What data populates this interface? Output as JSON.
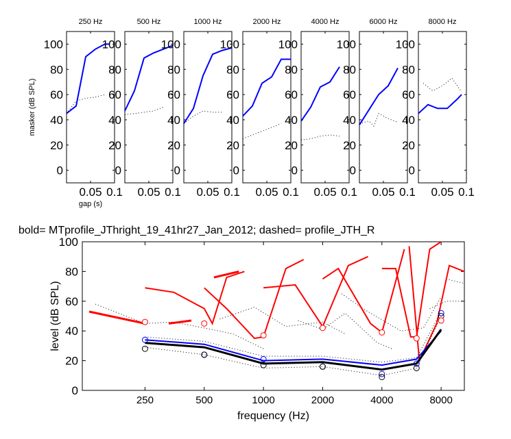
{
  "chart_data": [
    {
      "type": "line",
      "title": "250 Hz",
      "ylabel": "masker (dB SPL)",
      "xlabel": "gap (s)",
      "xlim": [
        0,
        0.1
      ],
      "ylim": [
        -10,
        110
      ],
      "xticks": [
        0.05,
        0.1
      ],
      "yticks": [
        0,
        20,
        40,
        60,
        80,
        100
      ],
      "series": [
        {
          "style": "solid-blue",
          "x": [
            0.0,
            0.02,
            0.04,
            0.06,
            0.08,
            0.09
          ],
          "y": [
            45,
            51,
            90,
            96,
            100,
            100
          ]
        },
        {
          "style": "dotted-black",
          "x": [
            0.0,
            0.02,
            0.04,
            0.06,
            0.08
          ],
          "y": [
            45,
            55,
            57,
            58,
            60
          ]
        }
      ]
    },
    {
      "type": "line",
      "title": "500 Hz",
      "xlim": [
        0,
        0.1
      ],
      "ylim": [
        -10,
        110
      ],
      "xticks": [
        0.05,
        0.1
      ],
      "yticks": [
        0,
        20,
        40,
        60,
        80,
        100
      ],
      "series": [
        {
          "style": "solid-blue",
          "x": [
            0.0,
            0.02,
            0.04,
            0.06,
            0.08,
            0.1
          ],
          "y": [
            47,
            63,
            89,
            93,
            96,
            99
          ]
        },
        {
          "style": "dotted-black",
          "x": [
            0.0,
            0.02,
            0.04,
            0.06,
            0.08
          ],
          "y": [
            44,
            45,
            46,
            47,
            50
          ]
        }
      ]
    },
    {
      "type": "line",
      "title": "1000 Hz",
      "xlim": [
        0,
        0.1
      ],
      "ylim": [
        -10,
        110
      ],
      "xticks": [
        0.05,
        0.1
      ],
      "yticks": [
        0,
        20,
        40,
        60,
        80,
        100
      ],
      "series": [
        {
          "style": "solid-blue",
          "x": [
            0.0,
            0.02,
            0.04,
            0.06,
            0.08,
            0.1
          ],
          "y": [
            37,
            49,
            75,
            92,
            95,
            97
          ]
        },
        {
          "style": "dotted-black",
          "x": [
            0.0,
            0.02,
            0.04,
            0.06,
            0.08
          ],
          "y": [
            37,
            43,
            47,
            46,
            46
          ]
        }
      ]
    },
    {
      "type": "line",
      "title": "2000 Hz",
      "xlim": [
        0,
        0.1
      ],
      "ylim": [
        -10,
        110
      ],
      "xticks": [
        0.05,
        0.1
      ],
      "yticks": [
        0,
        20,
        40,
        60,
        80,
        100
      ],
      "series": [
        {
          "style": "solid-blue",
          "x": [
            0.0,
            0.02,
            0.04,
            0.06,
            0.08,
            0.1
          ],
          "y": [
            43,
            51,
            69,
            74,
            88,
            88
          ]
        },
        {
          "style": "dotted-black",
          "x": [
            0.0,
            0.02,
            0.04,
            0.06,
            0.08
          ],
          "y": [
            25,
            28,
            31,
            34,
            37
          ]
        }
      ]
    },
    {
      "type": "line",
      "title": "4000 Hz",
      "xlim": [
        0,
        0.1
      ],
      "ylim": [
        -10,
        110
      ],
      "xticks": [
        0.05,
        0.1
      ],
      "yticks": [
        0,
        20,
        40,
        60,
        80,
        100
      ],
      "series": [
        {
          "style": "solid-blue",
          "x": [
            0.0,
            0.02,
            0.04,
            0.06,
            0.08
          ],
          "y": [
            39,
            50,
            66,
            70,
            82
          ]
        },
        {
          "style": "dotted-black",
          "x": [
            0.0,
            0.02,
            0.04,
            0.06,
            0.08
          ],
          "y": [
            24,
            25,
            27,
            28,
            27
          ]
        }
      ]
    },
    {
      "type": "line",
      "title": "6000 Hz",
      "xlim": [
        0,
        0.1
      ],
      "ylim": [
        -10,
        110
      ],
      "xticks": [
        0.05,
        0.1
      ],
      "yticks": [
        0,
        20,
        40,
        60,
        80,
        100
      ],
      "series": [
        {
          "style": "solid-blue",
          "x": [
            0.0,
            0.02,
            0.04,
            0.06,
            0.08
          ],
          "y": [
            36,
            48,
            60,
            67,
            81
          ]
        },
        {
          "style": "dotted-black",
          "x": [
            0.0,
            0.02,
            0.03,
            0.04,
            0.06,
            0.08
          ],
          "y": [
            37,
            39,
            35,
            45,
            41,
            38
          ]
        }
      ]
    },
    {
      "type": "line",
      "title": "8000 Hz",
      "xlim": [
        0,
        0.1
      ],
      "ylim": [
        -10,
        110
      ],
      "xticks": [
        0.05,
        0.1
      ],
      "yticks": [
        0,
        20,
        40,
        60,
        80,
        100
      ],
      "series": [
        {
          "style": "solid-blue",
          "x": [
            0.0,
            0.02,
            0.04,
            0.06,
            0.08,
            0.09
          ],
          "y": [
            45,
            52,
            49,
            49,
            56,
            60
          ]
        },
        {
          "style": "dotted-black",
          "x": [
            0.01,
            0.03,
            0.05,
            0.07,
            0.09
          ],
          "y": [
            69,
            63,
            67,
            73,
            62
          ]
        }
      ]
    },
    {
      "type": "line",
      "title": "bold= MTprofile_JThright_19_41hr27_Jan_2012;          dashed=  profile_JTH_R",
      "xlabel": "frequency (Hz)",
      "ylabel": "level (dB SPL)",
      "xscale": "log",
      "xlim": [
        120,
        10500
      ],
      "ylim": [
        0,
        100
      ],
      "xticks": [
        250,
        500,
        1000,
        2000,
        4000,
        8000
      ],
      "yticks": [
        0,
        20,
        40,
        60,
        80,
        100
      ],
      "series": [
        {
          "name": "",
          "style": "solid-blue",
          "x": [
            250,
            500,
            1000,
            2000,
            4000,
            6000,
            8000
          ],
          "y": [
            34,
            31,
            20,
            21,
            17,
            21,
            40
          ]
        },
        {
          "name": "",
          "style": "bold-black",
          "x": [
            250,
            500,
            1000,
            2000,
            4000,
            6000,
            8000
          ],
          "y": [
            32,
            29,
            18,
            19,
            14,
            18,
            41
          ]
        },
        {
          "name": "",
          "style": "dotted-black",
          "x": [
            250,
            500,
            1000,
            2000,
            4000,
            6000,
            8000
          ],
          "y": [
            29,
            24,
            15,
            16,
            10,
            15,
            50
          ]
        },
        {
          "name": "",
          "style": "dotted-black",
          "x": [
            250,
            500,
            1000,
            2000,
            4000,
            6000,
            8000
          ],
          "y": [
            36,
            33,
            23,
            23,
            19,
            22,
            53
          ]
        }
      ],
      "circles": {
        "blue": {
          "x": [
            250,
            500,
            1000,
            2000,
            4000,
            6000,
            8000
          ],
          "y": [
            34,
            24,
            21,
            16,
            11,
            18,
            52
          ]
        },
        "black": {
          "x": [
            250,
            500,
            1000,
            2000,
            4000,
            6000,
            8000
          ],
          "y": [
            28,
            24,
            17,
            16,
            9,
            15,
            50
          ]
        },
        "red": {
          "x": [
            250,
            500,
            1000,
            2000,
            4000,
            6000,
            8000
          ],
          "y": [
            46,
            45,
            37,
            42,
            39,
            35,
            47
          ]
        }
      },
      "red_curves": [
        {
          "x": [
            250,
            350,
            500,
            550,
            650,
            800
          ],
          "y": [
            69,
            66,
            55,
            45,
            76,
            80
          ]
        },
        {
          "x": [
            500,
            650,
            900,
            1000,
            1300,
            1600
          ],
          "y": [
            69,
            55,
            35,
            36,
            82,
            88
          ]
        },
        {
          "x": [
            1000,
            1450,
            2000,
            2700,
            3400
          ],
          "y": [
            69,
            71,
            43,
            84,
            90
          ]
        },
        {
          "x": [
            2000,
            2400,
            3500,
            4000,
            5200
          ],
          "y": [
            75,
            82,
            45,
            39,
            95
          ]
        },
        {
          "x": [
            4000,
            4700,
            5600,
            6000,
            7000,
            8000
          ],
          "y": [
            82,
            82,
            36,
            36,
            95,
            100
          ]
        },
        {
          "x": [
            5500,
            6200,
            7600,
            8800,
            10500
          ],
          "y": [
            97,
            20,
            45,
            84,
            80
          ]
        }
      ],
      "red_bold_segments": [
        {
          "x": [
            130,
            250
          ],
          "y": [
            53,
            45
          ]
        },
        {
          "x": [
            330,
            430
          ],
          "y": [
            45,
            47
          ]
        },
        {
          "x": [
            560,
            750
          ],
          "y": [
            76,
            80
          ]
        }
      ],
      "dotted_background": [
        {
          "x": [
            140,
            250,
            350,
            500,
            700,
            1000
          ],
          "y": [
            58,
            45,
            46,
            42,
            38,
            28
          ]
        },
        {
          "x": [
            600,
            900,
            1300,
            2000,
            2600
          ],
          "y": [
            48,
            56,
            43,
            46,
            38
          ]
        },
        {
          "x": [
            1500,
            2000,
            2600,
            3800,
            4500
          ],
          "y": [
            47,
            41,
            52,
            32,
            28
          ]
        },
        {
          "x": [
            2500,
            3200,
            5000,
            6500,
            8000
          ],
          "y": [
            65,
            55,
            40,
            42,
            63
          ]
        },
        {
          "x": [
            7000,
            8500,
            10500
          ],
          "y": [
            55,
            60,
            60
          ]
        },
        {
          "x": [
            8500,
            10500
          ],
          "y": [
            75,
            72
          ]
        }
      ]
    }
  ]
}
